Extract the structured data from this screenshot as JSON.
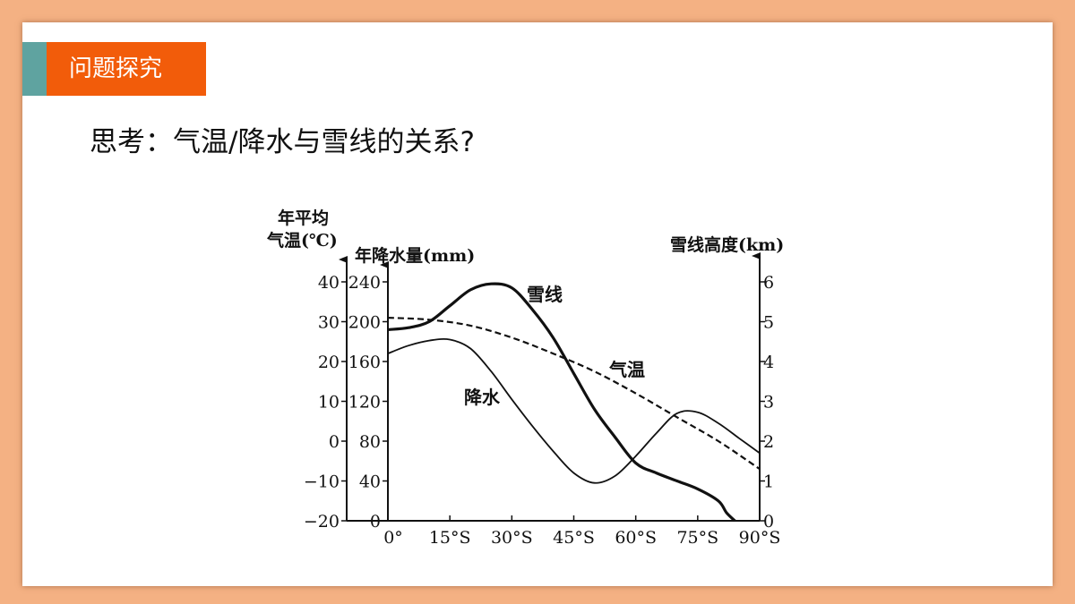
{
  "slide": {
    "section_title": "问题探究",
    "question": "思考：气温/降水与雪线的关系?"
  },
  "colors": {
    "border": "#f4b183",
    "title_bar": "#f25c0a",
    "title_accent": "#5fa3a0"
  },
  "chart_data": {
    "type": "line",
    "x_tick_labels": [
      "0°",
      "15°S",
      "30°S",
      "45°S",
      "60°S",
      "75°S",
      "90°S"
    ],
    "axes": {
      "temperature": {
        "label_line1": "年平均",
        "label_line2": "气温(℃)",
        "ticks": [
          "40",
          "30",
          "20",
          "10",
          "0",
          "−10",
          "−20"
        ],
        "ylim": [
          -20,
          40
        ]
      },
      "precipitation": {
        "label": "年降水量(mm)",
        "ticks": [
          "240",
          "200",
          "160",
          "120",
          "80",
          "40",
          "0"
        ],
        "ylim": [
          0,
          240
        ]
      },
      "snowline": {
        "label": "雪线高度(km)",
        "ticks": [
          "6",
          "5",
          "4",
          "3",
          "2",
          "1",
          "0"
        ],
        "ylim": [
          0,
          6
        ]
      }
    },
    "series": [
      {
        "name": "雪线",
        "axis": "snowline",
        "style": "solid-thick",
        "x": [
          0,
          5,
          10,
          15,
          20,
          25,
          30,
          35,
          40,
          45,
          50,
          55,
          60,
          65,
          70,
          75,
          80,
          82,
          84
        ],
        "values": [
          4.8,
          4.85,
          5.0,
          5.4,
          5.8,
          5.95,
          5.85,
          5.3,
          4.6,
          3.7,
          2.8,
          2.1,
          1.45,
          1.2,
          1.0,
          0.8,
          0.5,
          0.2,
          0.0
        ]
      },
      {
        "name": "降水",
        "axis": "precipitation",
        "style": "solid-thin",
        "x": [
          0,
          5,
          10,
          15,
          20,
          25,
          30,
          35,
          40,
          45,
          50,
          55,
          60,
          65,
          70,
          75,
          80,
          85,
          90
        ],
        "values": [
          168,
          176,
          181,
          182,
          173,
          150,
          122,
          95,
          70,
          48,
          38,
          45,
          65,
          88,
          108,
          109,
          98,
          83,
          68
        ]
      },
      {
        "name": "气温",
        "axis": "temperature",
        "style": "dashed",
        "x": [
          0,
          10,
          20,
          30,
          40,
          50,
          60,
          70,
          80,
          90
        ],
        "values": [
          31,
          30.5,
          29,
          26,
          22,
          17.5,
          12,
          6,
          0,
          -7
        ]
      }
    ]
  }
}
